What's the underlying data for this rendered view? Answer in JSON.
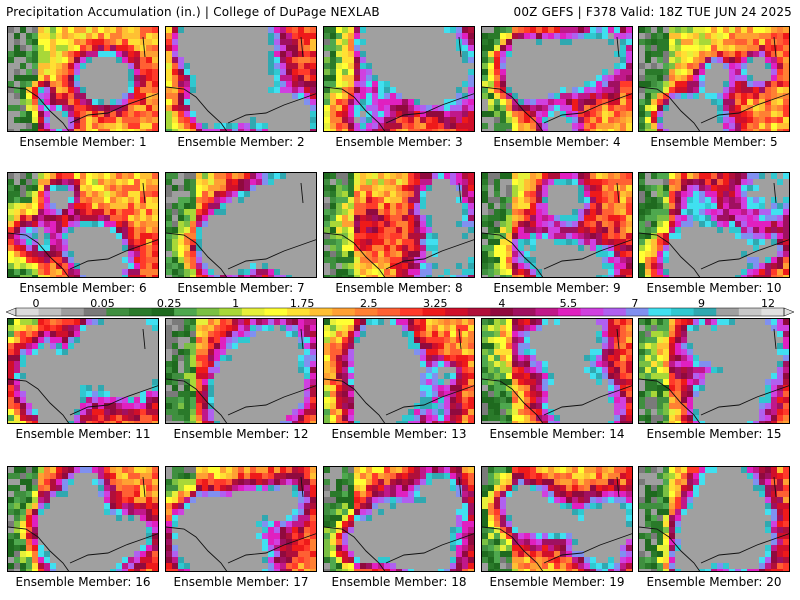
{
  "header": {
    "left": "Precipitation Accumulation (in.) | College of DuPage NEXLAB",
    "right": "00Z GEFS | F378 Valid: 18Z TUE JUN 24 2025"
  },
  "colorbar": {
    "tick_labels": [
      "0",
      "0.05",
      "0.25",
      "1",
      "1.75",
      "2.5",
      "3.25",
      "4",
      "5.5",
      "7",
      "9",
      "12"
    ],
    "colors": [
      "#dcdcdc",
      "#c0c0c0",
      "#9e9e9e",
      "#7a7a7a",
      "#3f8f3f",
      "#2a7a2a",
      "#1f6a1f",
      "#4ea84e",
      "#7ac043",
      "#a8d838",
      "#e6f03a",
      "#ffff33",
      "#ffe033",
      "#ffc033",
      "#ffa033",
      "#ff8033",
      "#ff6033",
      "#ff3a2a",
      "#ee1a1a",
      "#d00f2a",
      "#b00f3a",
      "#900a3e",
      "#a01060",
      "#c0188a",
      "#e020c0",
      "#d040e0",
      "#b060f0",
      "#8090f0",
      "#40e0f0",
      "#30c8d0",
      "#30a8b0",
      "#a0a0a0",
      "#c8c8c8",
      "#e0e0e0"
    ]
  },
  "panels": [
    {
      "label": "Ensemble Member: 1",
      "seed": 1
    },
    {
      "label": "Ensemble Member: 2",
      "seed": 2
    },
    {
      "label": "Ensemble Member: 3",
      "seed": 3
    },
    {
      "label": "Ensemble Member: 4",
      "seed": 4
    },
    {
      "label": "Ensemble Member: 5",
      "seed": 5
    },
    {
      "label": "Ensemble Member: 6",
      "seed": 6
    },
    {
      "label": "Ensemble Member: 7",
      "seed": 7
    },
    {
      "label": "Ensemble Member: 8",
      "seed": 8
    },
    {
      "label": "Ensemble Member: 9",
      "seed": 9
    },
    {
      "label": "Ensemble Member: 10",
      "seed": 10
    },
    {
      "label": "Ensemble Member: 11",
      "seed": 11
    },
    {
      "label": "Ensemble Member: 12",
      "seed": 12
    },
    {
      "label": "Ensemble Member: 13",
      "seed": 13
    },
    {
      "label": "Ensemble Member: 14",
      "seed": 14
    },
    {
      "label": "Ensemble Member: 15",
      "seed": 15
    },
    {
      "label": "Ensemble Member: 16",
      "seed": 16
    },
    {
      "label": "Ensemble Member: 17",
      "seed": 17
    },
    {
      "label": "Ensemble Member: 18",
      "seed": 18
    },
    {
      "label": "Ensemble Member: 19",
      "seed": 19
    },
    {
      "label": "Ensemble Member: 20",
      "seed": 20
    }
  ]
}
